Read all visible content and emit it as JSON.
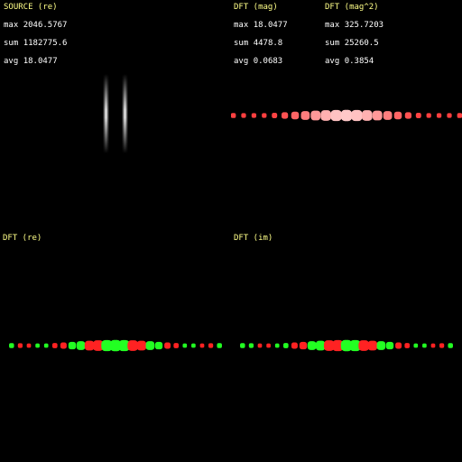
{
  "panels": {
    "source": {
      "title": "SOURCE (re)",
      "stats": [
        {
          "label": "max",
          "value": "2046.5767"
        },
        {
          "label": "sum",
          "value": "1182775.6"
        },
        {
          "label": "avg",
          "value": "18.0477"
        }
      ]
    },
    "mag": {
      "title": "DFT (mag)",
      "stats": [
        {
          "label": "max",
          "value": "18.0477"
        },
        {
          "label": "sum",
          "value": "4478.8"
        },
        {
          "label": "avg",
          "value": "0.0683"
        }
      ]
    },
    "mag2": {
      "title": "DFT (mag^2)",
      "stats": [
        {
          "label": "max",
          "value": "325.7203"
        },
        {
          "label": "sum",
          "value": "25260.5"
        },
        {
          "label": "avg",
          "value": "0.3854"
        }
      ]
    },
    "re": {
      "title": "DFT (re)"
    },
    "im": {
      "title": "DFT (im)"
    }
  },
  "colors": {
    "title": "#ffff88",
    "text": "#ffffff",
    "positive": "#22ff22",
    "negative": "#ff2222",
    "magnitude": "#ff3333"
  }
}
